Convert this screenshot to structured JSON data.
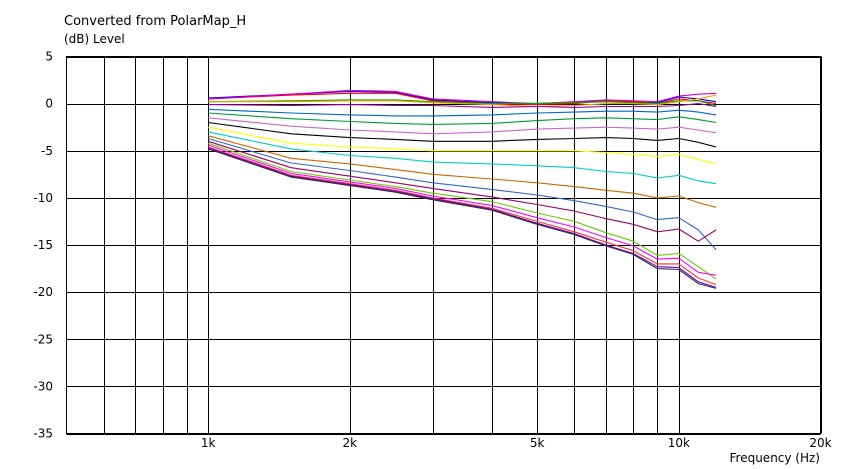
{
  "chart_data": {
    "type": "line",
    "title": "Converted from PolarMap_H",
    "ylabel": "(dB)  Level",
    "xlabel": "Frequency  (Hz)",
    "x_scale": "log",
    "xlim": [
      500,
      20000
    ],
    "ylim": [
      -35,
      5
    ],
    "grid": true,
    "xgrid": [
      600,
      700,
      800,
      900,
      1000,
      2000,
      3000,
      4000,
      5000,
      6000,
      7000,
      8000,
      9000,
      10000,
      20000
    ],
    "yticks": [
      5,
      0,
      -5,
      -10,
      -15,
      -20,
      -25,
      -30,
      -35
    ],
    "xticks": [
      {
        "value": 1000,
        "label": "1k"
      },
      {
        "value": 2000,
        "label": "2k"
      },
      {
        "value": 5000,
        "label": "5k"
      },
      {
        "value": 10000,
        "label": "10k"
      },
      {
        "value": 20000,
        "label": "20k"
      }
    ],
    "x": [
      1000,
      1500,
      2000,
      2500,
      3000,
      4000,
      5000,
      6000,
      7000,
      8000,
      9000,
      10000,
      11000,
      12000
    ],
    "series": [
      {
        "color": "#0000ff",
        "values": [
          0.6,
          1.0,
          1.3,
          1.2,
          0.4,
          0.1,
          0.0,
          0.1,
          0.3,
          0.2,
          0.1,
          0.7,
          0.5,
          0.2
        ]
      },
      {
        "color": "#ff0000",
        "values": [
          0.5,
          0.9,
          1.1,
          1.1,
          0.3,
          0.0,
          -0.1,
          0.0,
          0.3,
          0.2,
          0.0,
          0.5,
          0.3,
          0.0
        ]
      },
      {
        "color": "#cc00cc",
        "values": [
          0.5,
          1.0,
          1.4,
          1.3,
          0.5,
          0.2,
          0.0,
          0.2,
          0.4,
          0.3,
          0.2,
          0.8,
          1.0,
          1.1
        ]
      },
      {
        "color": "#00aa00",
        "values": [
          0.2,
          0.3,
          0.4,
          0.4,
          0.2,
          0.0,
          0.0,
          0.1,
          0.2,
          0.1,
          0.0,
          0.3,
          0.3,
          -0.2
        ]
      },
      {
        "color": "#ff9900",
        "values": [
          0.2,
          0.2,
          0.3,
          0.3,
          0.1,
          -0.1,
          -0.3,
          -0.2,
          0.0,
          0.0,
          -0.1,
          0.2,
          0.5,
          0.9
        ]
      },
      {
        "color": "#990099",
        "values": [
          -0.1,
          -0.2,
          -0.1,
          -0.2,
          -0.2,
          -0.4,
          -0.3,
          -0.4,
          -0.3,
          -0.3,
          -0.3,
          -0.2,
          0.0,
          -0.3
        ]
      },
      {
        "color": "#0066cc",
        "values": [
          -0.6,
          -1.0,
          -1.2,
          -1.3,
          -1.3,
          -1.2,
          -1.0,
          -0.9,
          -0.8,
          -0.8,
          -0.9,
          -0.7,
          -0.9,
          -1.2
        ]
      },
      {
        "color": "#009933",
        "values": [
          -1.0,
          -1.6,
          -1.9,
          -2.1,
          -2.2,
          -2.1,
          -1.8,
          -1.6,
          -1.5,
          -1.6,
          -1.7,
          -1.4,
          -1.7,
          -2.0
        ]
      },
      {
        "color": "#cc66cc",
        "values": [
          -1.5,
          -2.4,
          -2.8,
          -3.0,
          -3.2,
          -3.0,
          -2.7,
          -2.6,
          -2.5,
          -2.6,
          -2.7,
          -2.5,
          -2.8,
          -3.1
        ]
      },
      {
        "color": "#000000",
        "values": [
          -2.0,
          -3.2,
          -3.6,
          -3.8,
          -4.0,
          -4.0,
          -3.8,
          -3.7,
          -3.6,
          -3.7,
          -3.9,
          -3.7,
          -4.1,
          -4.6
        ]
      },
      {
        "color": "#ffff00",
        "values": [
          -2.5,
          -4.2,
          -4.6,
          -4.8,
          -5.0,
          -5.0,
          -5.0,
          -5.0,
          -5.2,
          -5.4,
          -5.6,
          -5.4,
          -5.9,
          -6.4
        ]
      },
      {
        "color": "#00cccc",
        "values": [
          -3.0,
          -4.8,
          -5.5,
          -5.8,
          -6.2,
          -6.4,
          -6.6,
          -6.8,
          -7.2,
          -7.4,
          -7.9,
          -7.6,
          -8.2,
          -8.5
        ]
      },
      {
        "color": "#cc6600",
        "values": [
          -3.4,
          -5.8,
          -6.4,
          -7.0,
          -7.5,
          -8.0,
          -8.4,
          -8.8,
          -9.2,
          -9.5,
          -10.0,
          -9.8,
          -10.5,
          -11.0
        ]
      },
      {
        "color": "#3366cc",
        "values": [
          -3.7,
          -6.3,
          -7.1,
          -7.8,
          -8.4,
          -9.1,
          -9.7,
          -10.3,
          -10.9,
          -11.5,
          -12.3,
          -12.1,
          -13.4,
          -15.5
        ]
      },
      {
        "color": "#990066",
        "values": [
          -4.0,
          -6.8,
          -7.7,
          -8.4,
          -9.0,
          -9.9,
          -10.7,
          -11.4,
          -12.2,
          -12.8,
          -13.6,
          -13.3,
          -14.6,
          -13.4
        ]
      },
      {
        "color": "#66cc00",
        "values": [
          -4.2,
          -7.2,
          -8.1,
          -8.8,
          -9.5,
          -10.4,
          -11.6,
          -12.5,
          -13.7,
          -14.6,
          -16.1,
          -15.9,
          -17.3,
          -18.6
        ]
      },
      {
        "color": "#ff00ff",
        "values": [
          -4.4,
          -7.4,
          -8.3,
          -9.0,
          -9.8,
          -10.8,
          -12.1,
          -13.1,
          -14.2,
          -15.1,
          -16.5,
          -16.4,
          -17.9,
          -18.2
        ]
      },
      {
        "color": "#ff3333",
        "values": [
          -4.6,
          -7.6,
          -8.5,
          -9.2,
          -10.0,
          -11.1,
          -12.5,
          -13.6,
          -14.7,
          -15.6,
          -17.0,
          -17.0,
          -18.5,
          -19.2
        ]
      },
      {
        "color": "#6600cc",
        "values": [
          -4.7,
          -7.7,
          -8.6,
          -9.3,
          -10.1,
          -11.2,
          -12.7,
          -13.8,
          -15.0,
          -15.9,
          -17.3,
          -17.4,
          -18.9,
          -19.5
        ]
      },
      {
        "color": "#333333",
        "values": [
          -4.8,
          -7.8,
          -8.7,
          -9.4,
          -10.2,
          -11.3,
          -12.8,
          -13.9,
          -15.1,
          -16.0,
          -17.5,
          -17.6,
          -19.1,
          -19.6
        ]
      }
    ]
  }
}
